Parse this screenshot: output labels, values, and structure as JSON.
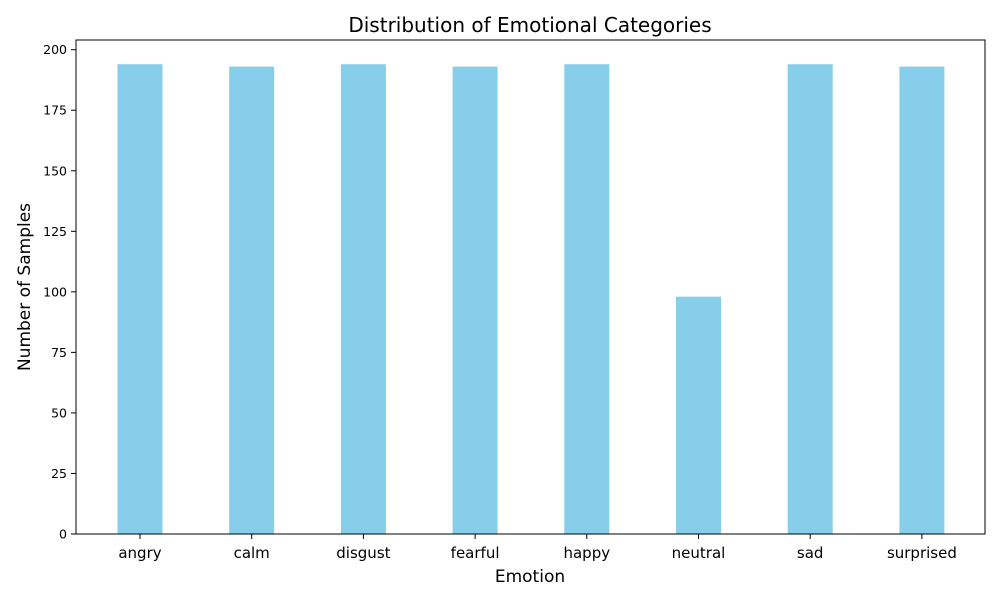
{
  "chart_data": {
    "type": "bar",
    "title": "Distribution of Emotional Categories",
    "xlabel": "Emotion",
    "ylabel": "Number of Samples",
    "categories": [
      "angry",
      "calm",
      "disgust",
      "fearful",
      "happy",
      "neutral",
      "sad",
      "surprised"
    ],
    "values": [
      194,
      193,
      194,
      193,
      194,
      98,
      194,
      193
    ],
    "ylim": [
      0,
      204
    ],
    "yticks": [
      0,
      25,
      50,
      75,
      100,
      125,
      150,
      175,
      200
    ],
    "bar_color": "#87ceeb",
    "grid": false,
    "legend": "none"
  }
}
